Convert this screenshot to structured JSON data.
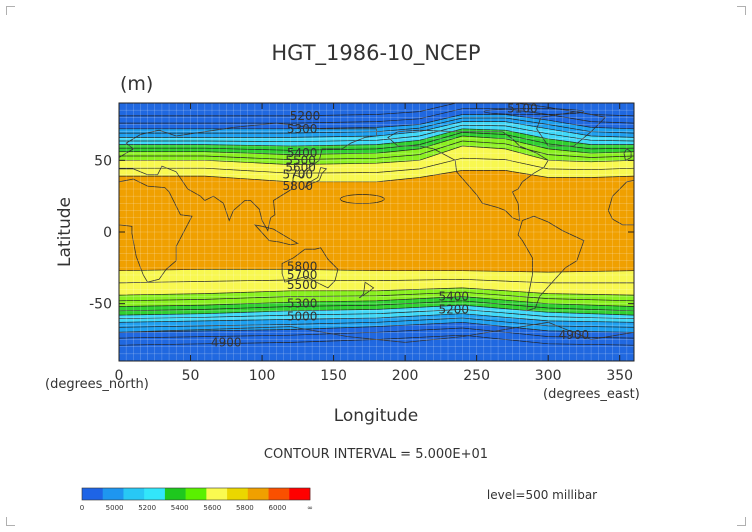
{
  "chart_data": {
    "type": "heatmap",
    "title": "HGT_1986-10_NCEP",
    "units": "(m)",
    "xlabel": "Longitude",
    "ylabel": "Latitude",
    "xlabel_unit": "(degrees_east)",
    "ylabel_unit": "(degrees_north)",
    "xlim": [
      0,
      360
    ],
    "ylim": [
      -90,
      90
    ],
    "xticks": [
      0,
      50,
      100,
      150,
      200,
      250,
      300,
      350
    ],
    "yticks": [
      -50,
      0,
      50
    ],
    "grid": true,
    "contour_interval_text": "CONTOUR INTERVAL = 5.000E+01",
    "level_text": "level=500 millibar",
    "colorbar": {
      "labels": [
        "0",
        "5000",
        "5200",
        "5400",
        "5600",
        "5800",
        "6000",
        "∞"
      ],
      "colors": [
        "#1e64e6",
        "#1e96f0",
        "#28c8f5",
        "#32e6fa",
        "#1ec81e",
        "#5af000",
        "#fafa50",
        "#ebd700",
        "#f0a000",
        "#fa5000",
        "#ff0000"
      ]
    },
    "band_colors": [
      "#2068e0",
      "#1ea0f0",
      "#40d8f8",
      "#30d030",
      "#8af020",
      "#f8f850",
      "#f0a000"
    ],
    "band_boundaries_north": [
      {
        "lon": 0,
        "lat": [
          72,
          66,
          61,
          56,
          50,
          39
        ]
      },
      {
        "lon": 60,
        "lat": [
          72,
          66,
          61,
          56,
          50,
          39
        ]
      },
      {
        "lon": 120,
        "lat": [
          72,
          66,
          60,
          54,
          47,
          35
        ]
      },
      {
        "lon": 180,
        "lat": [
          73,
          67,
          61,
          55,
          48,
          35
        ]
      },
      {
        "lon": 210,
        "lat": [
          75,
          70,
          64,
          58,
          50,
          38
        ]
      },
      {
        "lon": 240,
        "lat": [
          82,
          77,
          72,
          67,
          60,
          43
        ]
      },
      {
        "lon": 270,
        "lat": [
          82,
          77,
          71,
          65,
          58,
          43
        ]
      },
      {
        "lon": 300,
        "lat": [
          78,
          72,
          65,
          58,
          50,
          38
        ]
      },
      {
        "lon": 330,
        "lat": [
          73,
          67,
          61,
          55,
          49,
          38
        ]
      },
      {
        "lon": 360,
        "lat": [
          72,
          66,
          61,
          56,
          50,
          39
        ]
      }
    ],
    "band_boundaries_south": [
      {
        "lon": 0,
        "lat": [
          -70,
          -63,
          -58,
          -52,
          -44,
          -27
        ]
      },
      {
        "lon": 60,
        "lat": [
          -69,
          -62,
          -57,
          -51,
          -43,
          -26
        ]
      },
      {
        "lon": 120,
        "lat": [
          -68,
          -61,
          -55,
          -49,
          -41,
          -26
        ]
      },
      {
        "lon": 180,
        "lat": [
          -66,
          -60,
          -54,
          -48,
          -41,
          -27
        ]
      },
      {
        "lon": 240,
        "lat": [
          -63,
          -57,
          -51,
          -45,
          -39,
          -27
        ]
      },
      {
        "lon": 300,
        "lat": [
          -69,
          -62,
          -56,
          -50,
          -43,
          -28
        ]
      },
      {
        "lon": 360,
        "lat": [
          -70,
          -63,
          -58,
          -52,
          -44,
          -27
        ]
      }
    ],
    "contour_labels": [
      {
        "text": "5100",
        "lon": 282,
        "lat": 86
      },
      {
        "text": "5200",
        "lon": 130,
        "lat": 81
      },
      {
        "text": "5300",
        "lon": 128,
        "lat": 72
      },
      {
        "text": "5400",
        "lon": 128,
        "lat": 55
      },
      {
        "text": "5500",
        "lon": 127,
        "lat": 50
      },
      {
        "text": "5600",
        "lon": 127,
        "lat": 45
      },
      {
        "text": "5700",
        "lon": 125,
        "lat": 40
      },
      {
        "text": "5800",
        "lon": 125,
        "lat": 32
      },
      {
        "text": "5800",
        "lon": 128,
        "lat": -24
      },
      {
        "text": "5700",
        "lon": 128,
        "lat": -30
      },
      {
        "text": "5500",
        "lon": 128,
        "lat": -37
      },
      {
        "text": "5300",
        "lon": 128,
        "lat": -50
      },
      {
        "text": "5000",
        "lon": 128,
        "lat": -59
      },
      {
        "text": "5400",
        "lon": 234,
        "lat": -45
      },
      {
        "text": "5200",
        "lon": 234,
        "lat": -54
      },
      {
        "text": "4900",
        "lon": 75,
        "lat": -77
      },
      {
        "text": "4900",
        "lon": 318,
        "lat": -72
      }
    ]
  }
}
